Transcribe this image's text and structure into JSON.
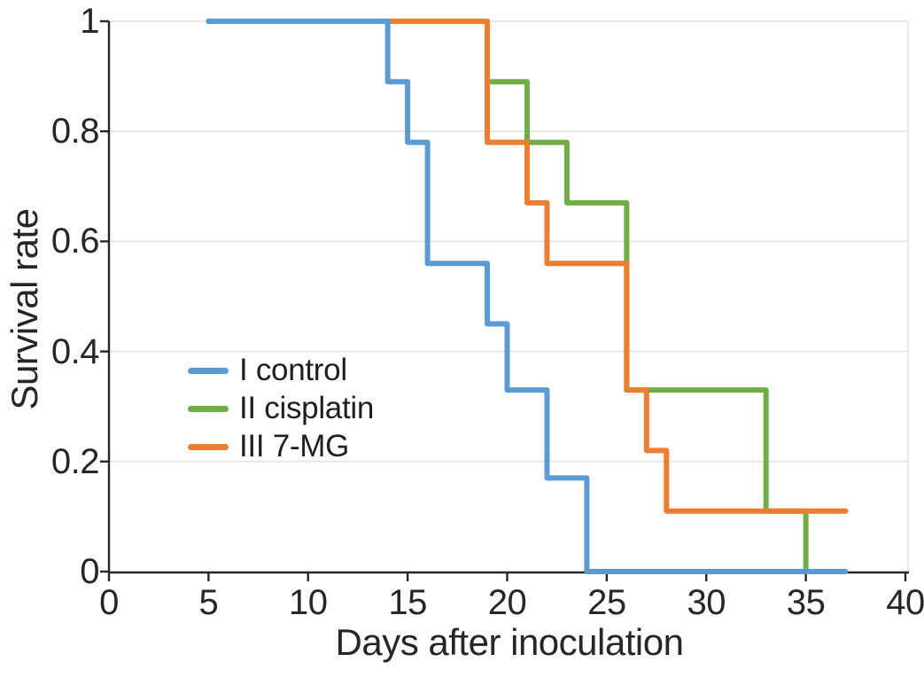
{
  "chart_data": {
    "type": "line",
    "subtype": "kaplan-meier-step-survival",
    "title": "",
    "xlabel": "Days after inoculation",
    "ylabel": "Survival rate",
    "xlim": [
      0,
      40
    ],
    "ylim": [
      0,
      1
    ],
    "xticks": [
      0,
      5,
      10,
      15,
      20,
      25,
      30,
      35,
      40
    ],
    "yticks": [
      0,
      0.2,
      0.4,
      0.6,
      0.8,
      1
    ],
    "grid": {
      "horizontal": true,
      "vertical": false,
      "right_border": true,
      "color": "#E7E7E7"
    },
    "axis_color": "#262626",
    "background": "#FFFFFF",
    "line_width": 6,
    "legend_position": "inside-left-middle",
    "series": [
      {
        "name": "I control",
        "color": "#5B9BD5",
        "start_day": 5,
        "points": [
          [
            5,
            1
          ],
          [
            14,
            0.89
          ],
          [
            15,
            0.78
          ],
          [
            16,
            0.56
          ],
          [
            19,
            0.45
          ],
          [
            20,
            0.33
          ],
          [
            22,
            0.17
          ],
          [
            24,
            0
          ]
        ],
        "end_day": 37
      },
      {
        "name": "II cisplatin",
        "color": "#70AD47",
        "start_day": 5,
        "points": [
          [
            5,
            1
          ],
          [
            19,
            0.89
          ],
          [
            21,
            0.78
          ],
          [
            23,
            0.67
          ],
          [
            26,
            0.33
          ],
          [
            33,
            0.11
          ],
          [
            35,
            0
          ]
        ],
        "end_day": 35
      },
      {
        "name": "III 7-MG",
        "color": "#ED7D31",
        "start_day": 5,
        "points": [
          [
            5,
            1
          ],
          [
            19,
            0.78
          ],
          [
            21,
            0.67
          ],
          [
            22,
            0.56
          ],
          [
            26,
            0.33
          ],
          [
            27,
            0.22
          ],
          [
            28,
            0.11
          ]
        ],
        "end_day": 37
      }
    ],
    "draw_order_series_indices": [
      1,
      2,
      0
    ]
  }
}
